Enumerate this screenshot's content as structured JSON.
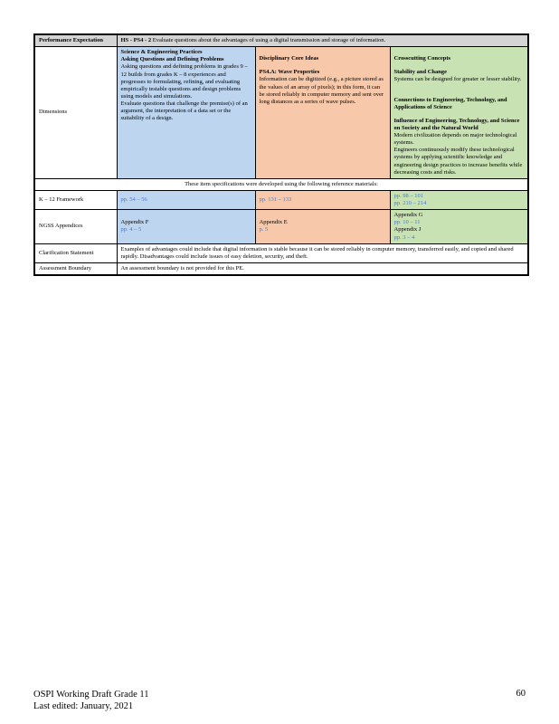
{
  "perf": {
    "label": "Performance Expectation",
    "code": "HS - PS4 - 2",
    "text": "Evaluate questions about the advantages of using a digital transmission and storage of information."
  },
  "dimensions": {
    "label": "Dimensions",
    "sep": {
      "title": "Science & Engineering Practices",
      "sub": "Asking Questions and Defining Problems",
      "body": "Asking questions and defining problems in grades 9 – 12 builds from grades K – 8 experiences and progresses to formulating, refining, and evaluating empirically testable questions and design problems using models and simulations.",
      "bullet": "Evaluate questions that challenge the premise(s) of an argument, the interpretation of a data set or the suitability of a design."
    },
    "dci": {
      "title": "Disciplinary Core Ideas",
      "sub": "PS4.A: Wave Properties",
      "bullet": "Information can be digitized (e.g., a picture stored as the values of an array of pixels); in this form, it can be stored reliably in computer memory and sent over long distances as a series of wave pulses."
    },
    "ccc": {
      "title": "Crosscutting Concepts",
      "h1": "Stability and Change",
      "b1": "Systems can be designed for greater or lesser stability.",
      "h2": "Connections to Engineering, Technology, and Applications of Science",
      "h3": "Influence of Engineering, Technology, and Science on Society and the Natural World",
      "b3a": "Modern civilization depends on major technological systems.",
      "b3b": "Engineers continuously modify these technological systems by applying scientific knowledge and engineering design practices to increase benefits while decreasing costs and risks."
    }
  },
  "refs_note": "These item specifications were developed using the following reference materials:",
  "k12": {
    "label": "K – 12 Framework",
    "sep": "pp. 54 – 56",
    "dci": "pp. 131 – 133",
    "ccc1": "pp. 98 – 101",
    "ccc2": "pp. 210 – 214"
  },
  "ngss": {
    "label": "NGSS Appendices",
    "sep_app": "Appendix F",
    "sep_pp": "pp. 4 – 5",
    "dci_app": "Appendix E",
    "dci_pp": "p. 5",
    "ccc_app1": "Appendix G",
    "ccc_pp1": "pp. 10 – 11",
    "ccc_app2": "Appendix J",
    "ccc_pp2": "pp. 3 – 4"
  },
  "clarification": {
    "label": "Clarification Statement",
    "text": "Examples of advantages could include that digital information is stable because it can be stored reliably in computer memory, transferred easily, and copied and shared rapidly. Disadvantages could include issues of easy deletion, security, and theft."
  },
  "assessment": {
    "label": "Assessment Boundary",
    "text": "An assessment boundary is not provided for this PE."
  },
  "footer": {
    "line1": "OSPI Working Draft Grade 11",
    "line2": "Last edited: January, 2021",
    "page": "60"
  },
  "bullet_glyph": "",
  "colors": {
    "sep": "#bdd5ee",
    "dci": "#f7c9aa",
    "ccc": "#c8e2b3",
    "header": "#d4d4d4",
    "link": "#4a78c9"
  }
}
